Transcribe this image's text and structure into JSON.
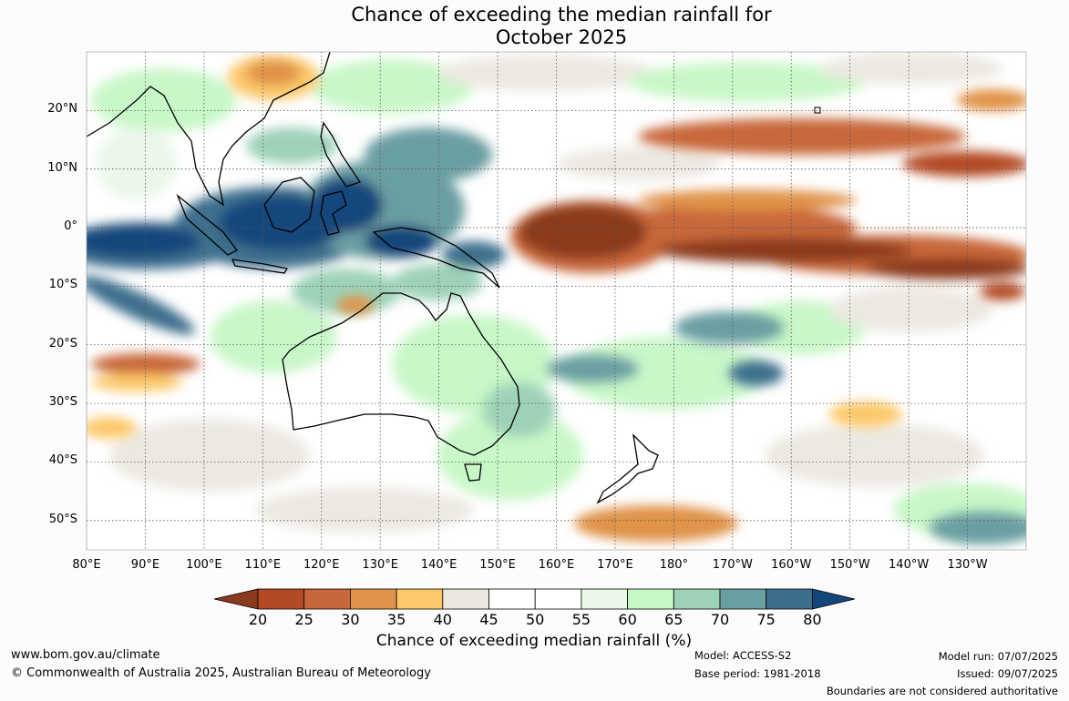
{
  "title": {
    "line1": "Chance of exceeding the median rainfall for",
    "line2": "October 2025"
  },
  "map": {
    "x_axis_labels": [
      "80°E",
      "90°E",
      "100°E",
      "110°E",
      "120°E",
      "130°E",
      "140°E",
      "150°E",
      "160°E",
      "170°E",
      "180°",
      "170°W",
      "160°W",
      "150°W",
      "140°W",
      "130°W"
    ],
    "y_axis_labels": [
      "20°N",
      "10°N",
      "0°",
      "10°S",
      "20°S",
      "30°S",
      "40°S",
      "50°S"
    ],
    "lon_range": [
      80,
      240
    ],
    "lat_range": [
      -55,
      30
    ],
    "gridlines": true
  },
  "colorbar": {
    "title": "Chance of exceeding median rainfall (%)",
    "ticks": [
      "20",
      "25",
      "30",
      "35",
      "40",
      "45",
      "50",
      "55",
      "60",
      "65",
      "70",
      "75",
      "80"
    ],
    "colors": [
      "#8b3a1d",
      "#b44a24",
      "#c8683a",
      "#e0934a",
      "#fcc86a",
      "#ebe8e0",
      "#ffffff",
      "#ffffff",
      "#eaf7ea",
      "#c6f7c6",
      "#9ed2b8",
      "#6a9fa2",
      "#3d6f8d",
      "#15467b"
    ]
  },
  "footer": {
    "website": "www.bom.gov.au/climate",
    "copyright": "© Commonwealth of Australia 2025, Australian Bureau of Meteorology",
    "model": "Model: ACCESS-S2",
    "base_period": "Base period: 1981-2018",
    "model_run": "Model run: 07/07/2025",
    "issued": "Issued: 09/07/2025",
    "disclaimer": "Boundaries are not considered authoritative"
  }
}
